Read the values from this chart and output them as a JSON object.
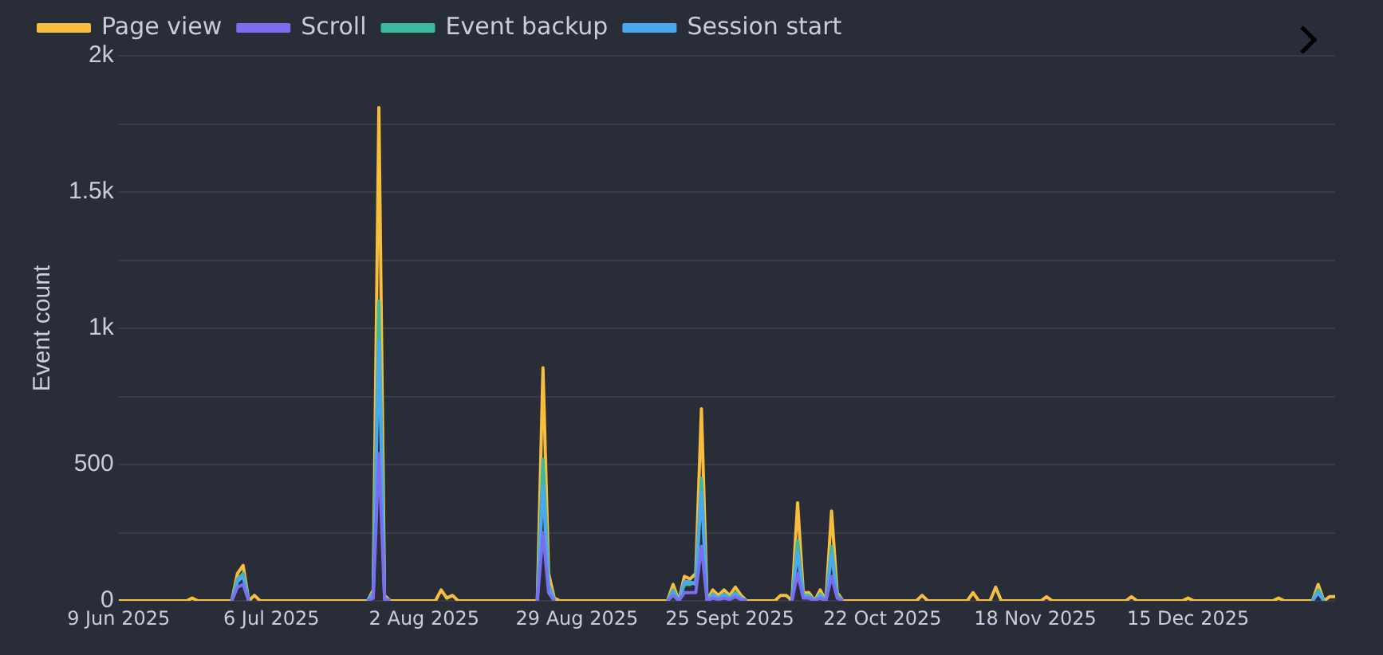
{
  "chart_data": {
    "type": "line",
    "ylabel": "Event count",
    "legend": "top left",
    "grid": "y",
    "marker": "none",
    "line_style": "solid",
    "x": [
      "2025-06-09",
      "2025-06-21",
      "2025-06-22",
      "2025-06-23",
      "2025-06-29",
      "2025-06-30",
      "2025-07-01",
      "2025-07-02",
      "2025-07-03",
      "2025-07-04",
      "2025-07-23",
      "2025-07-24",
      "2025-07-25",
      "2025-07-26",
      "2025-07-27",
      "2025-08-04",
      "2025-08-05",
      "2025-08-06",
      "2025-08-07",
      "2025-08-08",
      "2025-08-22",
      "2025-08-23",
      "2025-08-24",
      "2025-08-25",
      "2025-08-26",
      "2025-09-14",
      "2025-09-15",
      "2025-09-16",
      "2025-09-17",
      "2025-09-18",
      "2025-09-19",
      "2025-09-20",
      "2025-09-21",
      "2025-09-22",
      "2025-09-23",
      "2025-09-24",
      "2025-09-25",
      "2025-09-26",
      "2025-09-27",
      "2025-09-28",
      "2025-10-03",
      "2025-10-04",
      "2025-10-05",
      "2025-10-06",
      "2025-10-07",
      "2025-10-08",
      "2025-10-09",
      "2025-10-10",
      "2025-10-11",
      "2025-10-12",
      "2025-10-13",
      "2025-10-14",
      "2025-10-15",
      "2025-10-28",
      "2025-10-29",
      "2025-10-30",
      "2025-11-06",
      "2025-11-07",
      "2025-11-08",
      "2025-11-10",
      "2025-11-11",
      "2025-11-12",
      "2025-11-19",
      "2025-11-20",
      "2025-11-21",
      "2025-12-04",
      "2025-12-05",
      "2025-12-06",
      "2025-12-14",
      "2025-12-15",
      "2025-12-16",
      "2025-12-30",
      "2025-12-31",
      "2026-01-01",
      "2026-01-06",
      "2026-01-07",
      "2026-01-08",
      "2026-01-09",
      "2026-01-10"
    ],
    "series": [
      {
        "name": "Page view",
        "color": "#f7bd3e",
        "values": [
          0,
          0,
          10,
          0,
          0,
          100,
          130,
          0,
          20,
          0,
          0,
          40,
          1810,
          20,
          0,
          0,
          40,
          10,
          20,
          0,
          0,
          855,
          100,
          10,
          0,
          0,
          60,
          0,
          90,
          80,
          100,
          705,
          0,
          40,
          20,
          40,
          20,
          50,
          20,
          0,
          0,
          20,
          20,
          0,
          360,
          30,
          30,
          0,
          40,
          0,
          330,
          30,
          0,
          0,
          20,
          0,
          0,
          30,
          0,
          0,
          50,
          0,
          0,
          15,
          0,
          0,
          15,
          0,
          0,
          10,
          0,
          0,
          10,
          0,
          0,
          60,
          0,
          15,
          15
        ]
      },
      {
        "name": "Scroll",
        "color": "#7b6cf0",
        "values": [
          null,
          null,
          null,
          null,
          0,
          50,
          60,
          0,
          null,
          null,
          0,
          10,
          540,
          5,
          0,
          null,
          null,
          null,
          null,
          null,
          0,
          250,
          30,
          0,
          null,
          0,
          20,
          0,
          30,
          30,
          30,
          200,
          0,
          10,
          5,
          10,
          5,
          15,
          5,
          0,
          null,
          null,
          null,
          0,
          100,
          10,
          10,
          0,
          10,
          0,
          90,
          10,
          0,
          null,
          null,
          null,
          null,
          null,
          null,
          null,
          null,
          null,
          null,
          null,
          null,
          null,
          null,
          null,
          null,
          null,
          null,
          null,
          null,
          null,
          null,
          null,
          null,
          null,
          null
        ]
      },
      {
        "name": "Event backup",
        "color": "#3bb89f",
        "values": [
          null,
          null,
          null,
          null,
          0,
          80,
          100,
          0,
          null,
          null,
          0,
          30,
          1100,
          10,
          0,
          null,
          null,
          null,
          null,
          null,
          0,
          520,
          60,
          5,
          null,
          0,
          40,
          0,
          60,
          60,
          70,
          450,
          0,
          25,
          10,
          25,
          10,
          30,
          10,
          0,
          null,
          null,
          null,
          0,
          220,
          20,
          20,
          0,
          25,
          0,
          200,
          20,
          0,
          null,
          null,
          null,
          null,
          null,
          null,
          null,
          null,
          null,
          null,
          null,
          null,
          null,
          null,
          null,
          null,
          null,
          null,
          null,
          null,
          null,
          0,
          40,
          0,
          null,
          null
        ]
      },
      {
        "name": "Session start",
        "color": "#4aa8f0",
        "values": [
          null,
          null,
          null,
          null,
          0,
          70,
          90,
          0,
          null,
          null,
          0,
          25,
          950,
          10,
          0,
          null,
          null,
          null,
          null,
          null,
          0,
          420,
          50,
          5,
          null,
          0,
          30,
          0,
          70,
          70,
          60,
          400,
          0,
          20,
          10,
          20,
          10,
          25,
          10,
          0,
          null,
          null,
          null,
          0,
          180,
          15,
          15,
          0,
          20,
          0,
          170,
          15,
          0,
          null,
          null,
          null,
          null,
          null,
          null,
          null,
          null,
          null,
          null,
          null,
          null,
          null,
          null,
          null,
          null,
          null,
          null,
          null,
          null,
          null,
          0,
          30,
          0,
          null,
          null
        ]
      }
    ],
    "xlim": [
      "2025-06-09",
      "2026-01-10"
    ],
    "xticks": [
      {
        "value": "2025-06-09",
        "label": "9 Jun 2025"
      },
      {
        "value": "2025-07-06",
        "label": "6 Jul 2025"
      },
      {
        "value": "2025-08-02",
        "label": "2 Aug 2025"
      },
      {
        "value": "2025-08-29",
        "label": "29 Aug 2025"
      },
      {
        "value": "2025-09-25",
        "label": "25 Sept 2025"
      },
      {
        "value": "2025-10-22",
        "label": "22 Oct 2025"
      },
      {
        "value": "2025-11-18",
        "label": "18 Nov 2025"
      },
      {
        "value": "2025-12-15",
        "label": "15 Dec 2025"
      }
    ],
    "ylim": [
      0,
      2000
    ],
    "yticks": [
      0,
      {
        "value": 250,
        "label": null
      },
      {
        "value": 500,
        "label": "500"
      },
      {
        "value": 750,
        "label": null
      },
      {
        "value": 1000,
        "label": "1k"
      },
      {
        "value": 1250,
        "label": null
      },
      {
        "value": 1500,
        "label": "1.5k"
      },
      {
        "value": 1750,
        "label": null
      },
      {
        "value": 2000,
        "label": "2k"
      }
    ]
  }
}
